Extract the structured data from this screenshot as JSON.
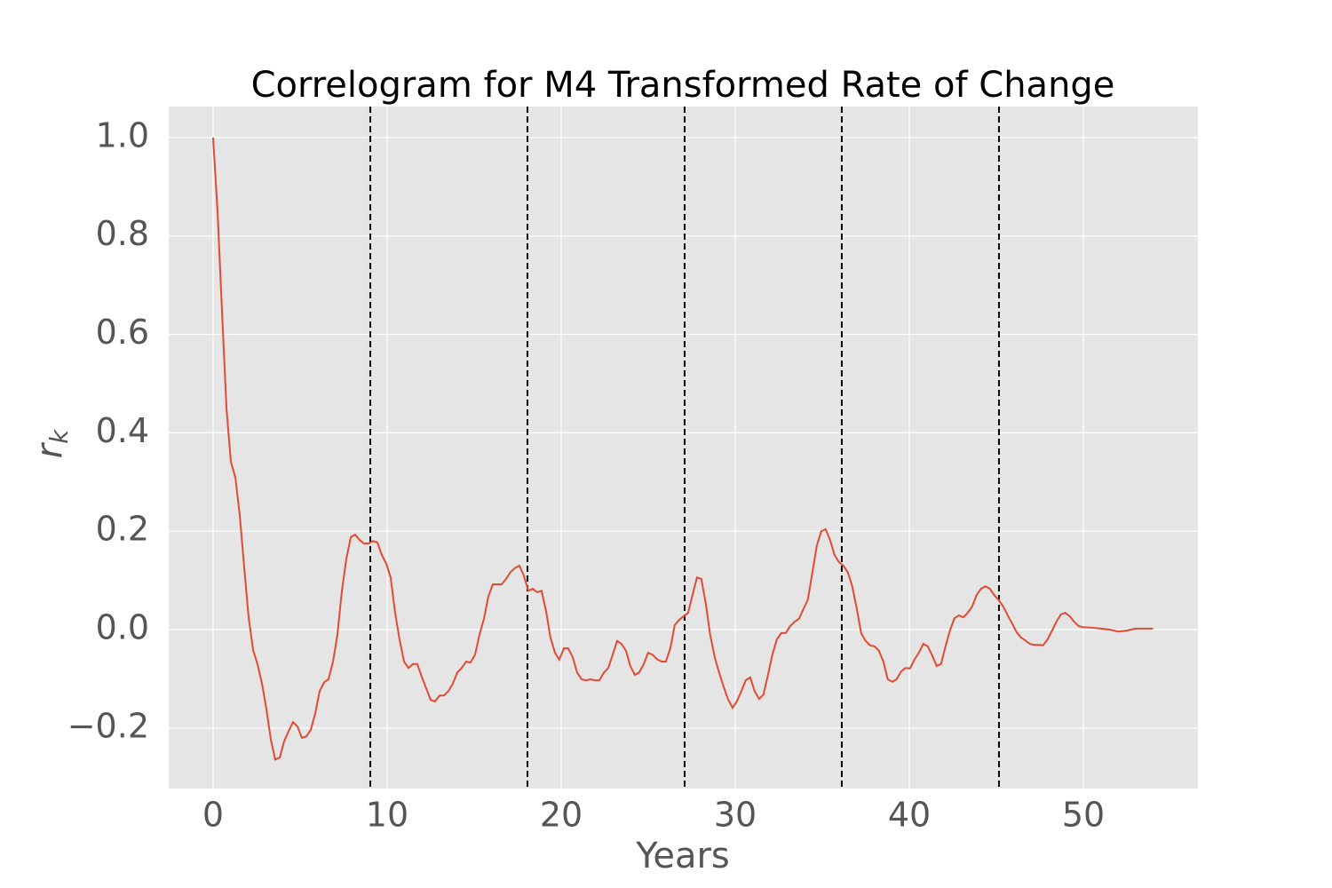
{
  "chart_data": {
    "type": "line",
    "title": "Correlogram for M4 Transformed Rate of Change",
    "xlabel": "Years",
    "ylabel": [
      "r",
      "k"
    ],
    "color": "#e24a33",
    "vline_color": "#000000",
    "grid": true,
    "xlim": [
      -2.55,
      56.58
    ],
    "ylim": [
      -0.323,
      1.063
    ],
    "xticks": [
      0,
      10,
      20,
      30,
      40,
      50
    ],
    "yticks": [
      {
        "value": -0.2,
        "label": "−0.2"
      },
      {
        "value": 0,
        "label": "0.0"
      },
      0.2,
      0.4,
      0.6,
      0.8,
      {
        "value": 1.0,
        "label": "1.0"
      }
    ],
    "vlines": [
      9.03,
      18.06,
      27.09,
      36.12,
      45.15
    ],
    "x": [
      0,
      0.26,
      0.51,
      0.77,
      1.02,
      1.28,
      1.53,
      1.79,
      2.04,
      2.3,
      2.55,
      2.81,
      3.06,
      3.32,
      3.57,
      3.83,
      4.08,
      4.34,
      4.59,
      4.85,
      5.1,
      5.36,
      5.61,
      5.87,
      6.12,
      6.38,
      6.63,
      6.89,
      7.14,
      7.4,
      7.65,
      7.91,
      8.16,
      8.42,
      8.67,
      8.93,
      9.18,
      9.44,
      9.69,
      9.95,
      10.2,
      10.46,
      10.71,
      10.97,
      11.22,
      11.48,
      11.73,
      11.99,
      12.24,
      12.5,
      12.75,
      13.01,
      13.26,
      13.52,
      13.77,
      14.03,
      14.28,
      14.54,
      14.79,
      15.05,
      15.3,
      15.56,
      15.81,
      16.07,
      16.32,
      16.58,
      16.83,
      17.09,
      17.34,
      17.6,
      17.85,
      18.11,
      18.36,
      18.62,
      18.87,
      19.13,
      19.38,
      19.64,
      19.89,
      20.15,
      20.4,
      20.66,
      20.91,
      21.17,
      21.42,
      21.68,
      21.93,
      22.19,
      22.44,
      22.7,
      22.95,
      23.21,
      23.46,
      23.72,
      23.97,
      24.23,
      24.48,
      24.74,
      24.99,
      25.25,
      25.5,
      25.76,
      26.01,
      26.27,
      26.52,
      26.78,
      27.03,
      27.29,
      27.54,
      27.8,
      28.05,
      28.31,
      28.56,
      28.82,
      29.07,
      29.33,
      29.58,
      29.84,
      30.09,
      30.35,
      30.6,
      30.86,
      31.11,
      31.37,
      31.62,
      31.88,
      32.13,
      32.39,
      32.64,
      32.9,
      33.15,
      33.41,
      33.66,
      33.92,
      34.17,
      34.43,
      34.68,
      34.94,
      35.19,
      35.45,
      35.7,
      35.96,
      36.21,
      36.47,
      36.72,
      36.98,
      37.23,
      37.49,
      37.74,
      38,
      38.25,
      38.51,
      38.76,
      39.02,
      39.27,
      39.53,
      39.78,
      40.04,
      40.29,
      40.55,
      40.8,
      41.06,
      41.31,
      41.57,
      41.82,
      42.08,
      42.33,
      42.59,
      42.84,
      43.1,
      43.35,
      43.61,
      43.86,
      44.12,
      44.37,
      44.63,
      44.88,
      45.14,
      45.39,
      45.65,
      45.9,
      46.16,
      46.41,
      46.67,
      46.92,
      47.18,
      47.43,
      47.69,
      47.94,
      48.2,
      48.45,
      48.71,
      48.96,
      49.22,
      49.47,
      49.73,
      49.98,
      50.5,
      51,
      51.5,
      52,
      52.5,
      53,
      54
    ],
    "values": [
      1.0,
      0.847,
      0.648,
      0.449,
      0.341,
      0.309,
      0.233,
      0.125,
      0.025,
      -0.042,
      -0.07,
      -0.11,
      -0.161,
      -0.224,
      -0.264,
      -0.26,
      -0.227,
      -0.206,
      -0.188,
      -0.197,
      -0.22,
      -0.217,
      -0.204,
      -0.17,
      -0.125,
      -0.107,
      -0.101,
      -0.065,
      -0.011,
      0.079,
      0.143,
      0.188,
      0.193,
      0.182,
      0.175,
      0.175,
      0.18,
      0.177,
      0.152,
      0.134,
      0.106,
      0.034,
      -0.02,
      -0.065,
      -0.078,
      -0.07,
      -0.07,
      -0.096,
      -0.119,
      -0.143,
      -0.146,
      -0.134,
      -0.134,
      -0.125,
      -0.11,
      -0.087,
      -0.078,
      -0.065,
      -0.067,
      -0.051,
      -0.011,
      0.022,
      0.067,
      0.092,
      0.092,
      0.092,
      0.103,
      0.117,
      0.125,
      0.13,
      0.11,
      0.079,
      0.083,
      0.076,
      0.079,
      0.038,
      -0.016,
      -0.047,
      -0.061,
      -0.038,
      -0.038,
      -0.056,
      -0.087,
      -0.101,
      -0.103,
      -0.101,
      -0.103,
      -0.103,
      -0.088,
      -0.078,
      -0.052,
      -0.023,
      -0.029,
      -0.043,
      -0.074,
      -0.092,
      -0.087,
      -0.07,
      -0.047,
      -0.051,
      -0.06,
      -0.065,
      -0.065,
      -0.038,
      0.009,
      0.02,
      0.027,
      0.034,
      0.07,
      0.106,
      0.103,
      0.052,
      -0.011,
      -0.056,
      -0.087,
      -0.116,
      -0.141,
      -0.159,
      -0.146,
      -0.125,
      -0.103,
      -0.097,
      -0.125,
      -0.141,
      -0.132,
      -0.092,
      -0.051,
      -0.02,
      -0.007,
      -0.007,
      0.007,
      0.016,
      0.022,
      0.042,
      0.061,
      0.116,
      0.17,
      0.2,
      0.204,
      0.182,
      0.152,
      0.137,
      0.13,
      0.116,
      0.088,
      0.043,
      -0.007,
      -0.023,
      -0.032,
      -0.034,
      -0.043,
      -0.065,
      -0.101,
      -0.106,
      -0.101,
      -0.085,
      -0.078,
      -0.079,
      -0.061,
      -0.047,
      -0.029,
      -0.034,
      -0.052,
      -0.074,
      -0.07,
      -0.034,
      -0.002,
      0.023,
      0.029,
      0.025,
      0.034,
      0.047,
      0.07,
      0.083,
      0.088,
      0.083,
      0.07,
      0.06,
      0.047,
      0.029,
      0.013,
      -0.005,
      -0.016,
      -0.022,
      -0.029,
      -0.031,
      -0.031,
      -0.032,
      -0.02,
      -0.002,
      0.016,
      0.031,
      0.034,
      0.027,
      0.016,
      0.007,
      0.005,
      0.004,
      0.002,
      0,
      -0.004,
      -0.002,
      0.002,
      0.002
    ]
  }
}
